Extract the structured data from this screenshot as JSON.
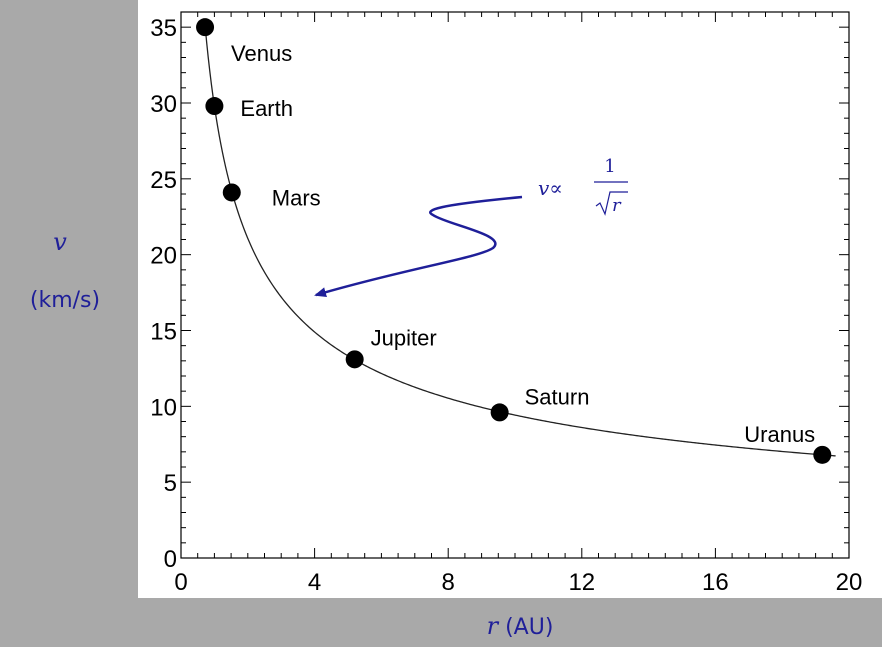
{
  "chart_data": {
    "type": "scatter",
    "xlabel_var": "r",
    "xlabel_unit": "(AU)",
    "ylabel_var": "v",
    "ylabel_unit": "(km/s)",
    "xlim": [
      0,
      20
    ],
    "ylim": [
      0,
      36
    ],
    "xticks": [
      0,
      4,
      8,
      12,
      16,
      20
    ],
    "yticks": [
      0,
      5,
      10,
      15,
      20,
      25,
      30,
      35
    ],
    "grid": false,
    "points": [
      {
        "name": "Venus",
        "x": 0.72,
        "y": 35.0
      },
      {
        "name": "Earth",
        "x": 1.0,
        "y": 29.8
      },
      {
        "name": "Mars",
        "x": 1.52,
        "y": 24.1
      },
      {
        "name": "Jupiter",
        "x": 5.2,
        "y": 13.1
      },
      {
        "name": "Saturn",
        "x": 9.54,
        "y": 9.6
      },
      {
        "name": "Uranus",
        "x": 19.2,
        "y": 6.8
      }
    ],
    "curve": {
      "formula": "v = 29.8 / sqrt(r)",
      "k": 29.8,
      "x_start": 0.72,
      "x_end": 19.6
    },
    "annotation": {
      "prefix": "v∝",
      "numerator": "1",
      "denominator": "r"
    },
    "colors": {
      "accent": "#1f1f99",
      "points": "#000000",
      "background": "#a9a9a9",
      "panel": "#ffffff"
    }
  }
}
